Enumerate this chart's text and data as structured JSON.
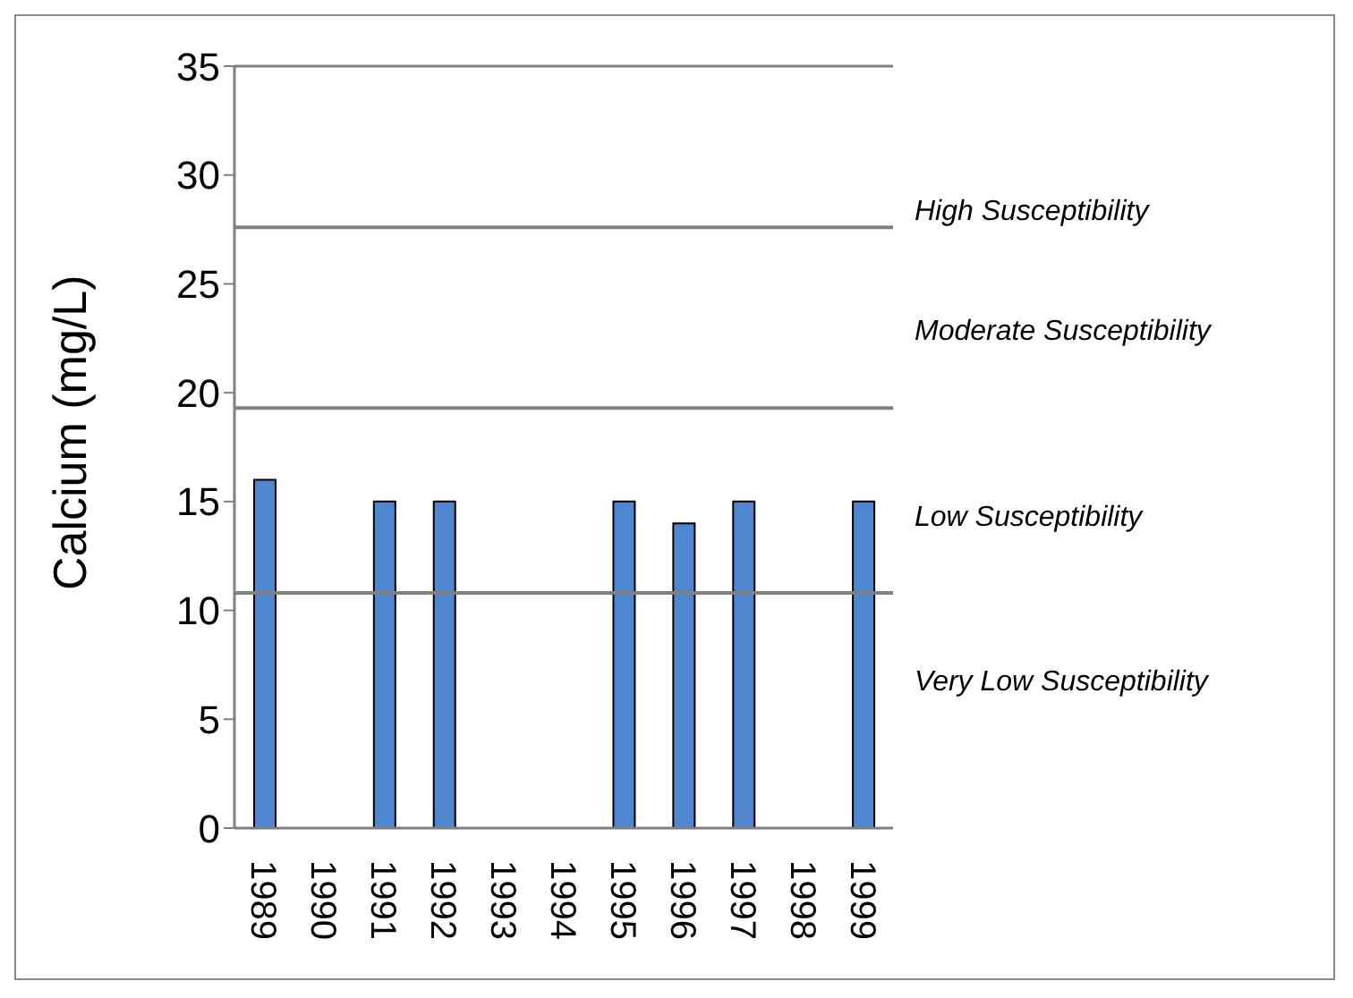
{
  "chart_data": {
    "type": "bar",
    "ylabel": "Calcium (mg/L)",
    "categories": [
      "1989",
      "1990",
      "1991",
      "1992",
      "1993",
      "1994",
      "1995",
      "1996",
      "1997",
      "1998",
      "1999"
    ],
    "values": [
      16,
      null,
      15,
      15,
      null,
      null,
      15,
      14,
      15,
      null,
      15
    ],
    "color": "#4f86d0",
    "ylim": [
      0,
      35
    ],
    "yticks": [
      0,
      5,
      10,
      15,
      20,
      25,
      30,
      35
    ],
    "ref_lines": [
      {
        "axis": "y",
        "value": 10.8,
        "color": "#808080"
      },
      {
        "axis": "y",
        "value": 19.3,
        "color": "#808080"
      },
      {
        "axis": "y",
        "value": 27.6,
        "color": "#808080"
      }
    ],
    "annotations": [
      "High Susceptibility",
      "Moderate Susceptibility",
      "Low Susceptibility",
      "Very Low Susceptibility"
    ],
    "grid": false,
    "legend": false
  }
}
